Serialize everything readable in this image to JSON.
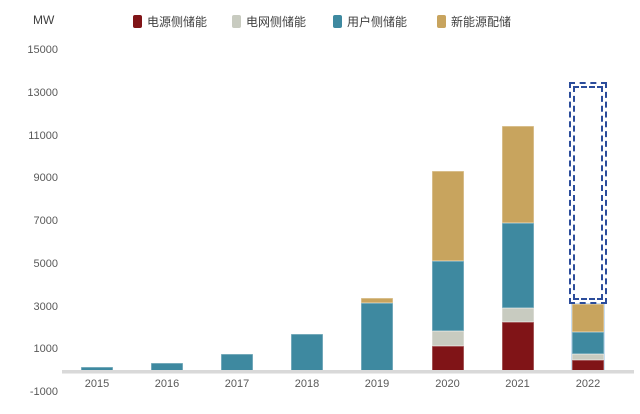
{
  "unit_label": "MW",
  "legend": [
    {
      "label": "电源侧储能",
      "color": "#801417"
    },
    {
      "label": "电网侧储能",
      "color": "#c8cbc0"
    },
    {
      "label": "用户侧储能",
      "color": "#3e89a0"
    },
    {
      "label": "新能源配储",
      "color": "#c8a45e"
    }
  ],
  "chart_data": {
    "type": "bar",
    "subtype": "stacked-column-with-forecast",
    "unit": "MW",
    "categories": [
      "2015",
      "2016",
      "2017",
      "2018",
      "2019",
      "2020",
      "2021",
      "2022"
    ],
    "series": [
      {
        "name": "电源侧储能",
        "color": "#801417",
        "values": [
          0,
          0,
          0,
          0,
          0,
          1170,
          2290,
          520
        ]
      },
      {
        "name": "电网侧储能",
        "color": "#c8cbc0",
        "values": [
          0,
          0,
          0,
          0,
          0,
          700,
          660,
          280
        ]
      },
      {
        "name": "用户侧储能",
        "color": "#3e89a0",
        "values": [
          160,
          380,
          800,
          1730,
          3160,
          3280,
          3980,
          1030
        ]
      },
      {
        "name": "新能源配储",
        "color": "#c8a45e",
        "values": [
          0,
          0,
          0,
          0,
          230,
          4170,
          4530,
          1310
        ]
      }
    ],
    "totals": [
      160,
      380,
      800,
      1730,
      3390,
      9320,
      11460,
      3140
    ],
    "forecast": {
      "category": "2022",
      "total": 13500,
      "style": "dashed-outline-box",
      "color": "#2b4c9b"
    },
    "ylim": [
      -1000,
      15000
    ],
    "ytick_step": 2000,
    "ytick_labels": [
      "15000",
      "13000",
      "11000",
      "9000",
      "7000",
      "5000",
      "3000",
      "1000",
      "-1000"
    ],
    "grid": false,
    "legend_position": "top"
  },
  "colors": {
    "background": "#ffffff",
    "axis_line": "#d9d9d9",
    "tick_text": "#595959",
    "legend_text": "#3f3f3f",
    "forecast_border": "#2b4c9b"
  }
}
